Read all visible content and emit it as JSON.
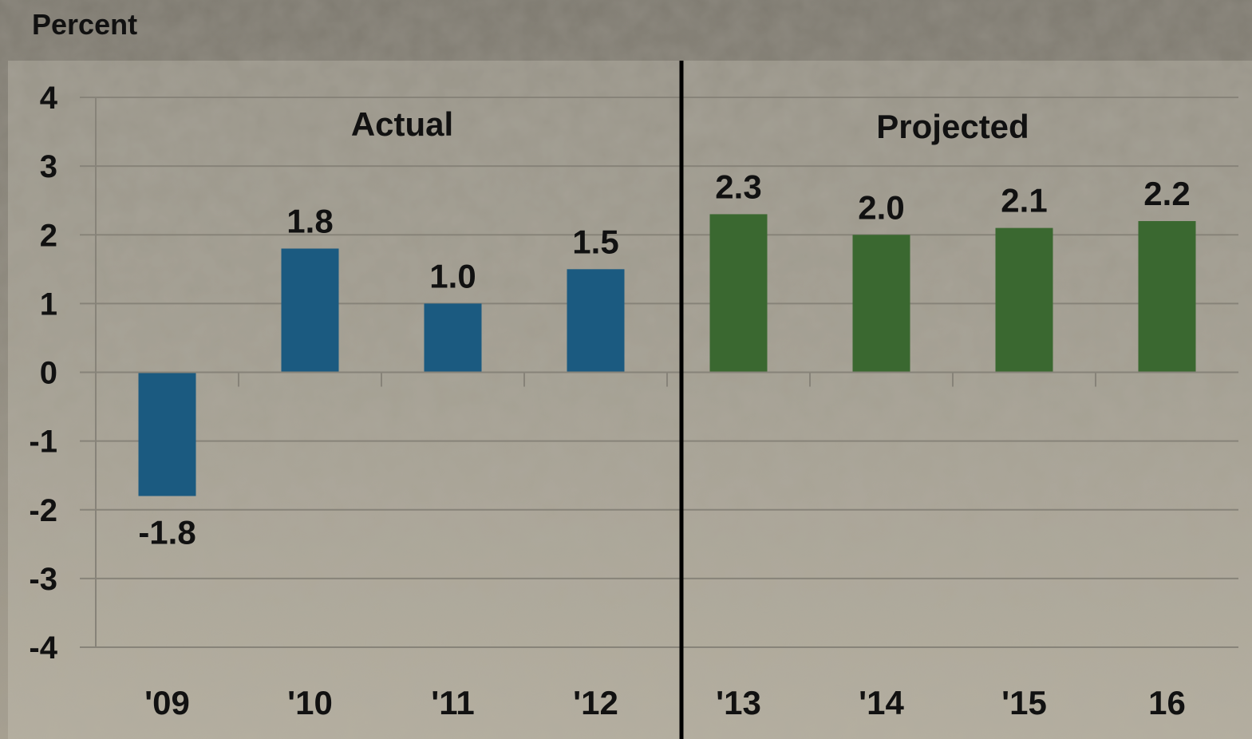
{
  "chart_data": {
    "type": "bar",
    "ylabel": "Percent",
    "ylim": [
      -4,
      4
    ],
    "yticks": [
      "4",
      "3",
      "2",
      "1",
      "0",
      "-1",
      "-2",
      "-3",
      "-4"
    ],
    "categories": [
      "'09",
      "'10",
      "'11",
      "'12",
      "'13",
      "'14",
      "'15",
      "16"
    ],
    "values": [
      -1.8,
      1.8,
      1.0,
      1.5,
      2.3,
      2.0,
      2.1,
      2.2
    ],
    "data_labels": [
      "-1.8",
      "1.8",
      "1.0",
      "1.5",
      "2.3",
      "2.0",
      "2.1",
      "2.2"
    ],
    "groups": [
      {
        "label": "Actual",
        "categories": [
          "'09",
          "'10",
          "'11",
          "'12"
        ],
        "color": "#1b5a80"
      },
      {
        "label": "Projected",
        "categories": [
          "'13",
          "'14",
          "'15",
          "16"
        ],
        "color": "#3a6830"
      }
    ],
    "grid": true,
    "legend": "none"
  }
}
